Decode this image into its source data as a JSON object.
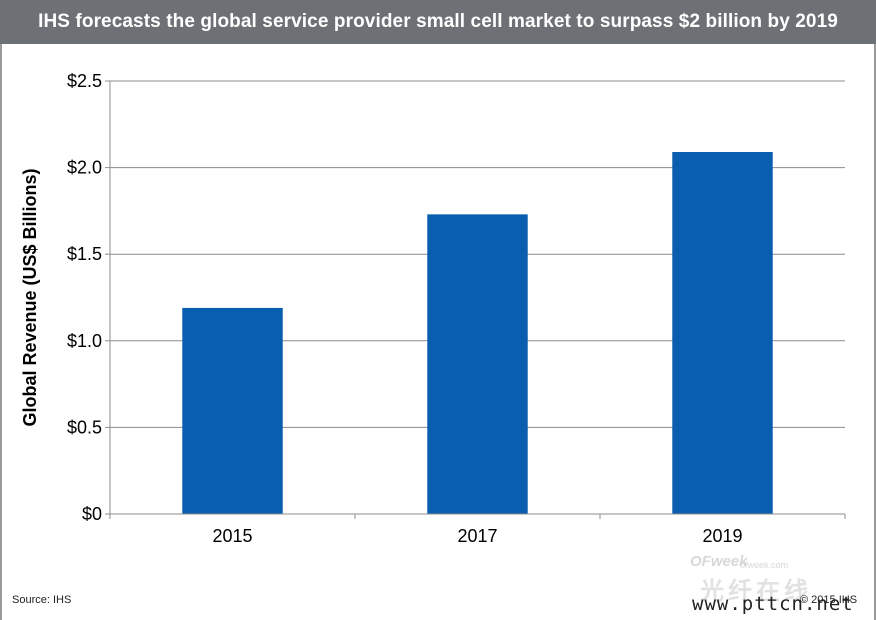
{
  "chart_data": {
    "type": "bar",
    "title": "IHS forecasts the global service provider small cell market to surpass $2 billion by 2019",
    "xlabel": "",
    "ylabel": "Global Revenue (US$ Billions)",
    "categories": [
      "2015",
      "2017",
      "2019"
    ],
    "values": [
      1.19,
      1.73,
      2.09
    ],
    "ylim": [
      0,
      2.5
    ],
    "yticks": [
      "$0",
      "$0.5",
      "$1.0",
      "$1.5",
      "$2.0",
      "$2.5"
    ],
    "ytick_values": [
      0,
      0.5,
      1.0,
      1.5,
      2.0,
      2.5
    ],
    "grid": true,
    "bar_color": "#0a5eb0"
  },
  "footer": {
    "source": "Source: IHS",
    "copyright": "© 2015 IHS"
  },
  "watermark": {
    "logo": "OFweek",
    "sub": "ofweek.com",
    "chinese": "光纤在线",
    "url": "www.pttcn.net"
  }
}
